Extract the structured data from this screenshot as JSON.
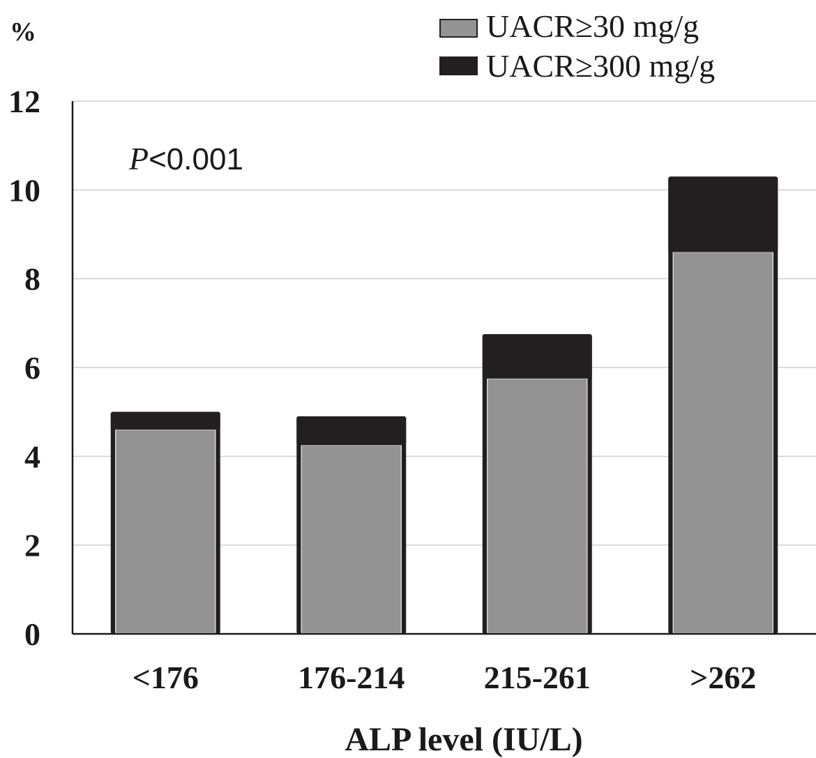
{
  "chart_data": {
    "type": "bar",
    "stacked": true,
    "categories": [
      "<176",
      "176-214",
      "215-261",
      ">262"
    ],
    "series": [
      {
        "name": "UACR≥30 mg/g",
        "values": [
          4.6,
          4.25,
          5.75,
          8.6
        ],
        "color": "#939393"
      },
      {
        "name": "UACR≥300 mg/g",
        "values": [
          0.4,
          0.65,
          1.0,
          1.7
        ],
        "color": "#231f20"
      }
    ],
    "ylabel": "%",
    "xlabel": "ALP level (IU/L)",
    "ylim": [
      0,
      12
    ],
    "yticks": [
      "0",
      "2",
      "4",
      "6",
      "8",
      "10",
      "12"
    ],
    "annotation": {
      "p_letter": "P",
      "p_rest": "<0.001"
    },
    "grid": true,
    "legend_position": "top-right"
  }
}
